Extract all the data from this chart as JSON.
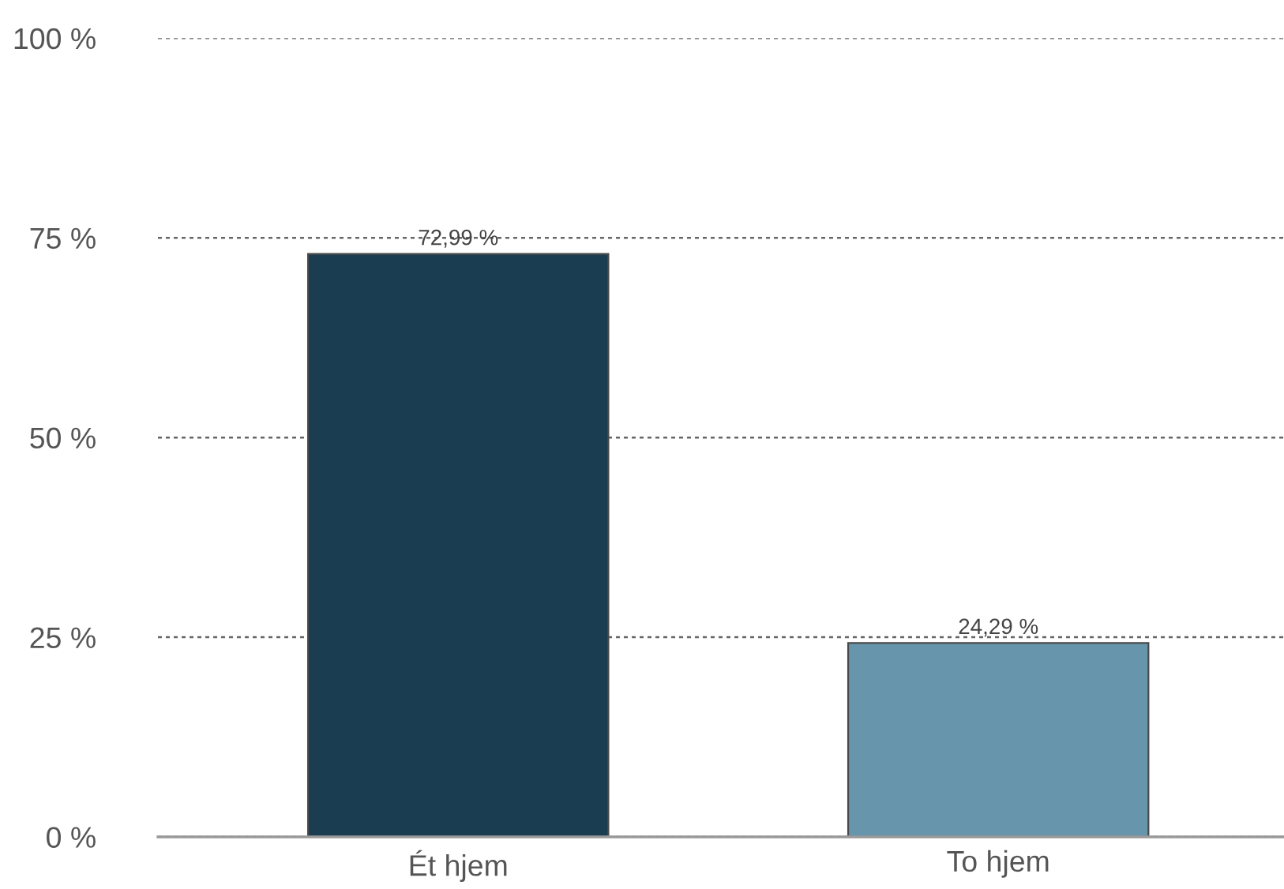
{
  "chart_data": {
    "type": "bar",
    "categories": [
      "Ét hjem",
      "To hjem"
    ],
    "values": [
      72.99,
      24.29
    ],
    "colors": [
      "#1b3d51",
      "#6795ab"
    ],
    "value_labels": [
      "72,99 %",
      "24,29 %"
    ],
    "ylim": [
      0,
      100
    ],
    "yticks": [
      {
        "value": 0,
        "label": "0 %"
      },
      {
        "value": 25,
        "label": "25 %"
      },
      {
        "value": 50,
        "label": "50 %"
      },
      {
        "value": 75,
        "label": "75 %"
      },
      {
        "value": 100,
        "label": "100 %"
      }
    ],
    "grid": "y",
    "legend": false
  }
}
